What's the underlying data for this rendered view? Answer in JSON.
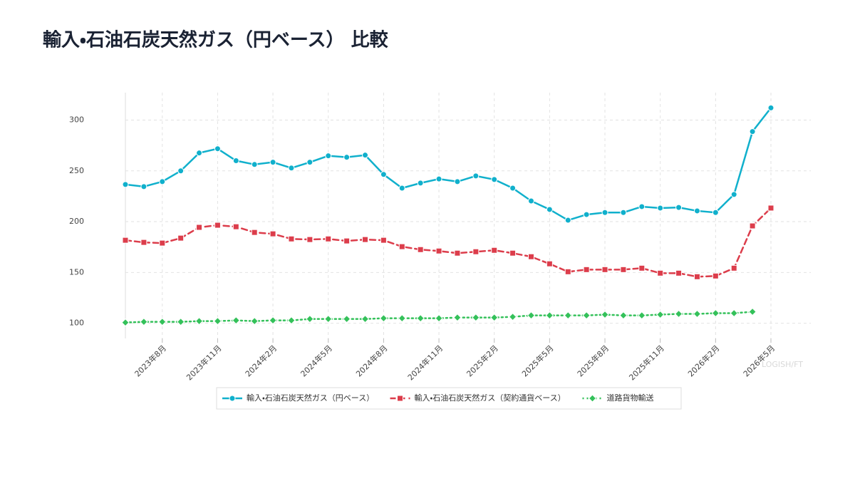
{
  "chart_data": {
    "type": "line",
    "title": "輸入・石油石炭天然ガス（円ベース） 比較",
    "watermark": "LOGISH/FT",
    "categories": [
      null,
      null,
      "2023年8月",
      null,
      null,
      "2023年11月",
      null,
      null,
      "2024年2月",
      null,
      null,
      "2024年5月",
      null,
      null,
      "2024年8月",
      null,
      null,
      "2024年11月",
      null,
      null,
      "2025年2月",
      null,
      null,
      "2025年5月",
      null,
      null,
      "2025年8月",
      null,
      null,
      "2025年11月",
      null,
      null,
      "2026年2月",
      null,
      null,
      "2026年5月"
    ],
    "ylim": [
      85,
      327
    ],
    "yticks": [
      100,
      150,
      200,
      250,
      300
    ],
    "grid": true,
    "legend": "bottom",
    "series": [
      {
        "name": "輸入・石油石炭天然ガス（円ベース）",
        "color": "#10b0cc",
        "line_style": "solid",
        "marker": "circle",
        "values": [
          236.6,
          234.5,
          239.4,
          250,
          267.6,
          271.8,
          260,
          256.3,
          258.5,
          252.8,
          258.5,
          264.8,
          263.4,
          265.5,
          246.5,
          233,
          238,
          242,
          239.4,
          245,
          241.5,
          233,
          220.4,
          212,
          201.4,
          207,
          209,
          209,
          214.8,
          213.4,
          214,
          210.6,
          209,
          226.8,
          288.7,
          312
        ]
      },
      {
        "name": "輸入・石油石炭天然ガス（契約通貨ベース）",
        "color": "#dc3d4b",
        "line_style": "dashed",
        "marker": "square",
        "values": [
          181.7,
          179.6,
          178.9,
          183.8,
          194.4,
          196.5,
          195,
          189.4,
          188,
          183,
          182.4,
          183,
          181,
          182.4,
          181.7,
          175.4,
          172.5,
          171.1,
          169,
          170.4,
          171.8,
          169,
          165.5,
          158.5,
          150.7,
          152.8,
          152.8,
          152.8,
          154.2,
          149.3,
          149.3,
          145.8,
          146.5,
          154.2,
          195.8,
          213.4
        ]
      },
      {
        "name": "道路貨物輸送",
        "color": "#34c15a",
        "line_style": "dotted",
        "marker": "diamond",
        "values": [
          100.7,
          101.4,
          101.4,
          101.4,
          102.1,
          102.1,
          102.8,
          102.1,
          102.8,
          102.8,
          104.2,
          104.2,
          104.2,
          104.2,
          104.9,
          104.9,
          104.9,
          104.9,
          105.6,
          105.6,
          105.6,
          106.3,
          107.7,
          107.7,
          107.7,
          107.7,
          108.5,
          107.7,
          107.7,
          108.5,
          109.2,
          109.2,
          109.9,
          109.9,
          111.3,
          null
        ]
      }
    ]
  }
}
